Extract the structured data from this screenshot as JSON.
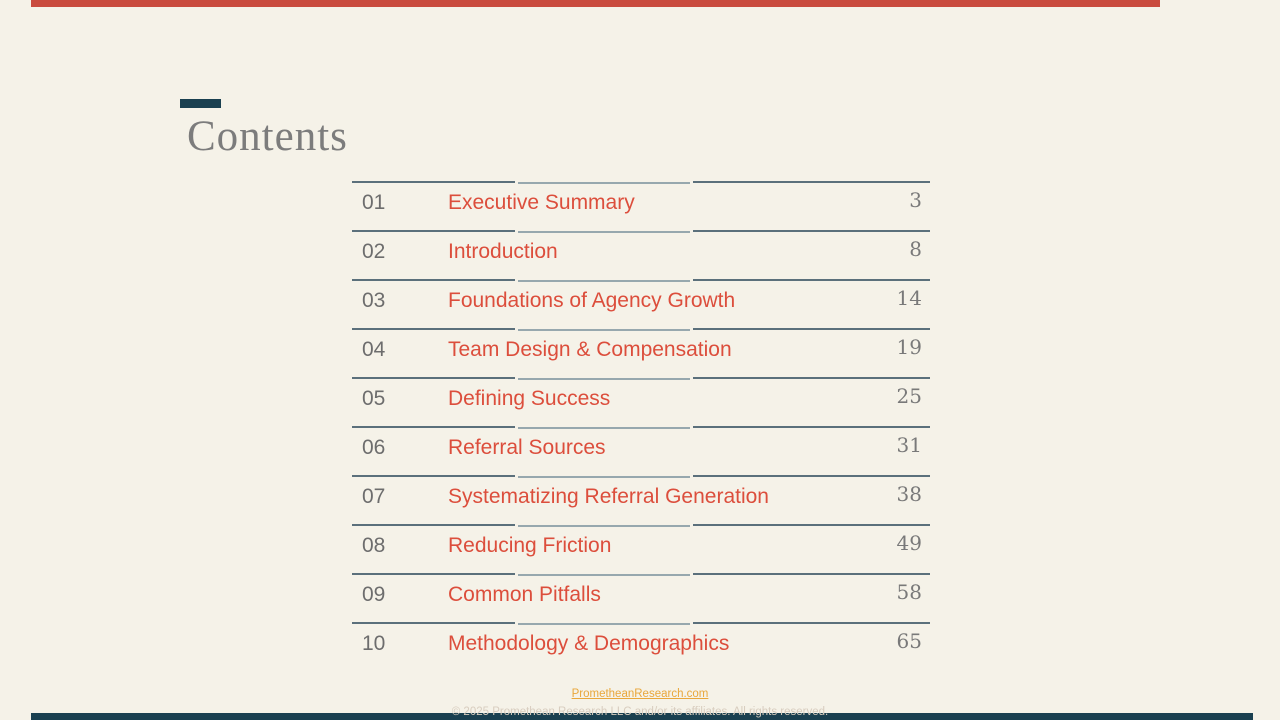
{
  "slide": {
    "title": "Contents",
    "toc": [
      {
        "num": "01",
        "title": "Executive Summary",
        "page": "3"
      },
      {
        "num": "02",
        "title": "Introduction",
        "page": "8"
      },
      {
        "num": "03",
        "title": "Foundations of Agency Growth",
        "page": "14"
      },
      {
        "num": "04",
        "title": "Team Design & Compensation",
        "page": "19"
      },
      {
        "num": "05",
        "title": "Defining Success",
        "page": "25"
      },
      {
        "num": "06",
        "title": "Referral Sources",
        "page": "31"
      },
      {
        "num": "07",
        "title": "Systematizing Referral Generation",
        "page": "38"
      },
      {
        "num": "08",
        "title": "Reducing Friction",
        "page": "49"
      },
      {
        "num": "09",
        "title": "Common Pitfalls",
        "page": "58"
      },
      {
        "num": "10",
        "title": "Methodology & Demographics",
        "page": "65"
      }
    ],
    "footer": {
      "link": "PrometheanResearch.com",
      "copyright": "© 2025 Promethean Research LLC and/or its affiliates. All rights reserved."
    },
    "colors": {
      "background": "#f5f2e8",
      "accent_red": "#c94b3e",
      "accent_teal": "#1a4050",
      "heading_gray": "#7c7c7c",
      "toc_title_red": "#dc4e3c",
      "toc_num_gray": "#6d6d6d",
      "toc_page_gray": "#797979",
      "rule_dark": "#5b707b",
      "rule_light": "#97a8ae",
      "footer_link_gold": "#e9a73b",
      "footer_copyright_gray": "#d8cdbf"
    }
  }
}
